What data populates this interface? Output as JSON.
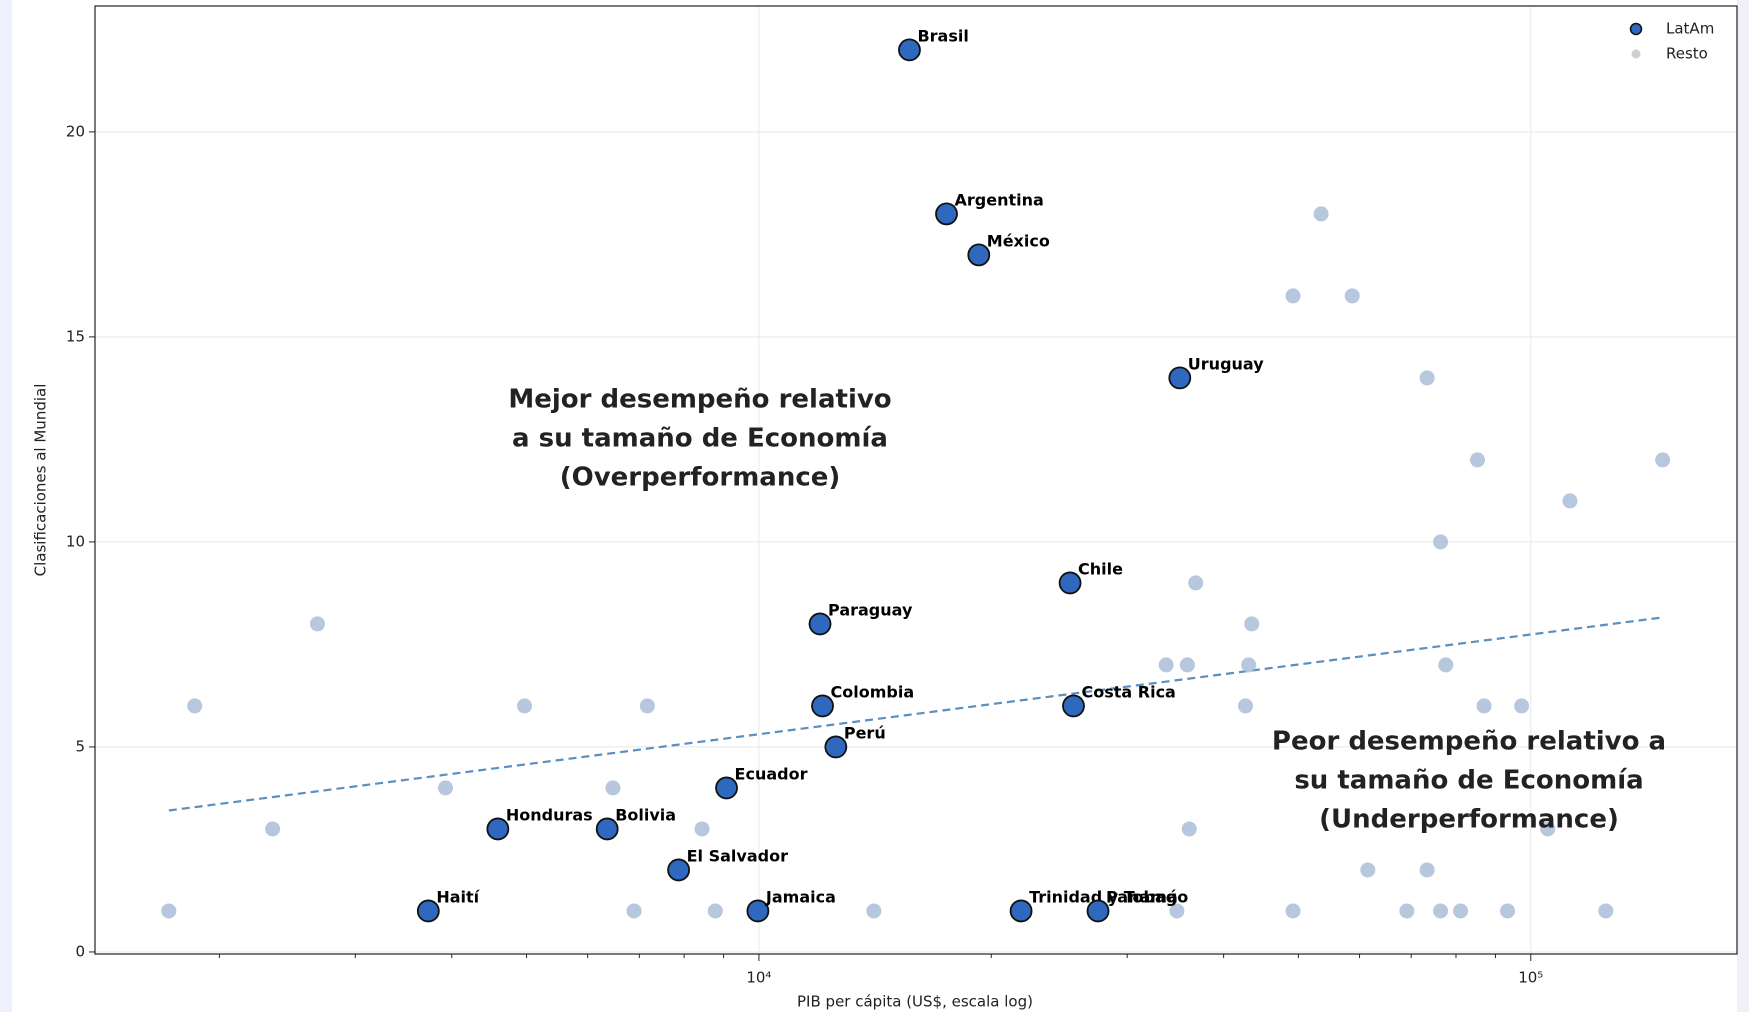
{
  "chart_data": {
    "type": "scatter",
    "xlabel": "PIB per cápita (US$, escala log)",
    "ylabel": "Clasificaciones al Mundial",
    "xscale": "log",
    "xlim": [
      1380,
      185000
    ],
    "ylim": [
      -0.05,
      23.07
    ],
    "xticks": [
      {
        "value": 10000,
        "label": "10⁴"
      },
      {
        "value": 100000,
        "label": "10⁵"
      }
    ],
    "xminorticks": [
      2000,
      3000,
      4000,
      5000,
      6000,
      7000,
      8000,
      9000,
      20000,
      30000,
      40000,
      50000,
      60000,
      70000,
      80000,
      90000
    ],
    "yticks": [
      0,
      5,
      10,
      15,
      20
    ],
    "grid": true,
    "legend": "upper right",
    "series": [
      {
        "name": "LatAm",
        "color": "#2f69bf",
        "edgecolor": "#111111",
        "labels": [
          "Brasil",
          "Argentina",
          "México",
          "Uruguay",
          "Chile",
          "Paraguay",
          "Colombia",
          "Costa Rica",
          "Perú",
          "Ecuador",
          "Honduras",
          "Bolivia",
          "El Salvador",
          "Haití",
          "Jamaica",
          "Trinidad y Tobago",
          "Panamá"
        ],
        "x": [
          15670,
          17500,
          19270,
          35100,
          25300,
          12000,
          12090,
          25560,
          12580,
          9080,
          4590,
          6360,
          7870,
          3730,
          9970,
          21860,
          27500
        ],
        "values": [
          22,
          18,
          17,
          14,
          9,
          8,
          6,
          6,
          5,
          4,
          3,
          3,
          2,
          1,
          1,
          1,
          1
        ]
      },
      {
        "name": "Resto",
        "color": "#a9bdd8",
        "x": [
          1720,
          1858,
          2344,
          2680,
          3926,
          4970,
          6470,
          6890,
          7170,
          8440,
          8780,
          14090,
          33700,
          34800,
          35900,
          36100,
          36800,
          42700,
          43100,
          43500,
          49200,
          49200,
          53500,
          58700,
          61500,
          69100,
          73400,
          73400,
          76400,
          76400,
          77600,
          81100,
          85300,
          87000,
          93300,
          97300,
          105200,
          112400,
          125100,
          148200
        ],
        "values": [
          1,
          6,
          3,
          8,
          4,
          6,
          4,
          1,
          6,
          3,
          1,
          1,
          7,
          1,
          7,
          3,
          9,
          6,
          7,
          8,
          16,
          1,
          18,
          16,
          2,
          1,
          14,
          2,
          10,
          1,
          7,
          1,
          12,
          6,
          1,
          6,
          3,
          11,
          1,
          12
        ]
      }
    ],
    "trend": {
      "color": "#5a8fc0",
      "x": [
        1720,
        147000
      ],
      "values": [
        3.45,
        8.15
      ]
    },
    "annotations": [
      {
        "lines": [
          "Mejor desempeño relativo",
          "a su tamaño de Economía",
          "(Overperformance)"
        ],
        "color": "#10b04a"
      },
      {
        "lines": [
          "Peor desempeño relativo a",
          "su tamaño de Economía",
          "(Underperformance)"
        ],
        "color": "#15224f"
      }
    ]
  }
}
